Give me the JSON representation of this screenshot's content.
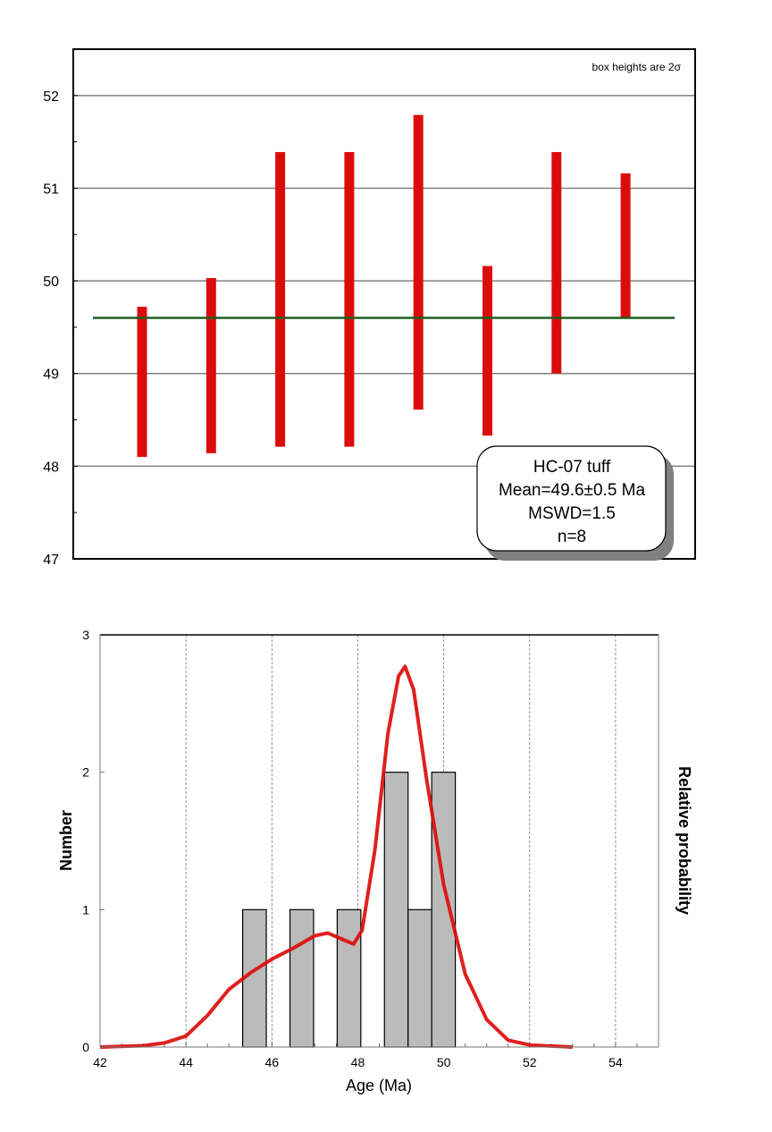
{
  "chart_data": [
    {
      "type": "bar",
      "subtype": "weighted-mean error bars",
      "annotation": "box heights are 2σ",
      "ylim": [
        47,
        52.5
      ],
      "yticks": [
        "47",
        "48",
        "49",
        "50",
        "51",
        "52"
      ],
      "grid": true,
      "bars": [
        {
          "low": 48.1,
          "high": 49.72
        },
        {
          "low": 48.14,
          "high": 50.03
        },
        {
          "low": 48.21,
          "high": 51.39
        },
        {
          "low": 48.21,
          "high": 51.39
        },
        {
          "low": 48.61,
          "high": 51.79
        },
        {
          "low": 48.33,
          "high": 50.16
        },
        {
          "low": 49.0,
          "high": 51.39
        },
        {
          "low": 49.61,
          "high": 51.16
        }
      ],
      "mean": 49.6,
      "bar_color": "#dd0c0c",
      "mean_color": "#1f5e1f",
      "legend_box": {
        "lines": [
          "HC-07 tuff",
          "Mean=49.6±0.5 Ma",
          "MSWD=1.5",
          "n=8"
        ],
        "placement": "bottom-right"
      }
    },
    {
      "type": "bar",
      "subtype": "histogram with probability density curve",
      "xlabel": "Age (Ma)",
      "ylabel": "Number",
      "y2label": "Relative probability",
      "xlim": [
        42,
        55
      ],
      "ylim": [
        0,
        3
      ],
      "xticks": [
        "42",
        "44",
        "46",
        "48",
        "50",
        "52",
        "54"
      ],
      "yticks": [
        "0",
        "1",
        "2",
        "3"
      ],
      "grid": "vertical dashed",
      "histogram": [
        {
          "from": 45.32,
          "to": 45.87,
          "count": 1
        },
        {
          "from": 46.42,
          "to": 46.97,
          "count": 1
        },
        {
          "from": 47.52,
          "to": 48.07,
          "count": 1
        },
        {
          "from": 48.62,
          "to": 49.17,
          "count": 2
        },
        {
          "from": 49.17,
          "to": 49.72,
          "count": 1
        },
        {
          "from": 49.72,
          "to": 50.27,
          "count": 2
        }
      ],
      "bar_color": "#bbbbbb",
      "curve_color": "#dd0c0c",
      "curve": [
        [
          42,
          0
        ],
        [
          43,
          0.01
        ],
        [
          43.5,
          0.03
        ],
        [
          44,
          0.08
        ],
        [
          44.5,
          0.23
        ],
        [
          45,
          0.42
        ],
        [
          45.5,
          0.54
        ],
        [
          46,
          0.64
        ],
        [
          46.5,
          0.72
        ],
        [
          47,
          0.81
        ],
        [
          47.3,
          0.83
        ],
        [
          47.6,
          0.79
        ],
        [
          47.9,
          0.75
        ],
        [
          48.1,
          0.85
        ],
        [
          48.4,
          1.44
        ],
        [
          48.7,
          2.28
        ],
        [
          48.95,
          2.7
        ],
        [
          49.1,
          2.77
        ],
        [
          49.3,
          2.6
        ],
        [
          49.6,
          1.95
        ],
        [
          50,
          1.18
        ],
        [
          50.5,
          0.53
        ],
        [
          51,
          0.2
        ],
        [
          51.5,
          0.05
        ],
        [
          52,
          0.015
        ],
        [
          53,
          0
        ]
      ]
    }
  ]
}
